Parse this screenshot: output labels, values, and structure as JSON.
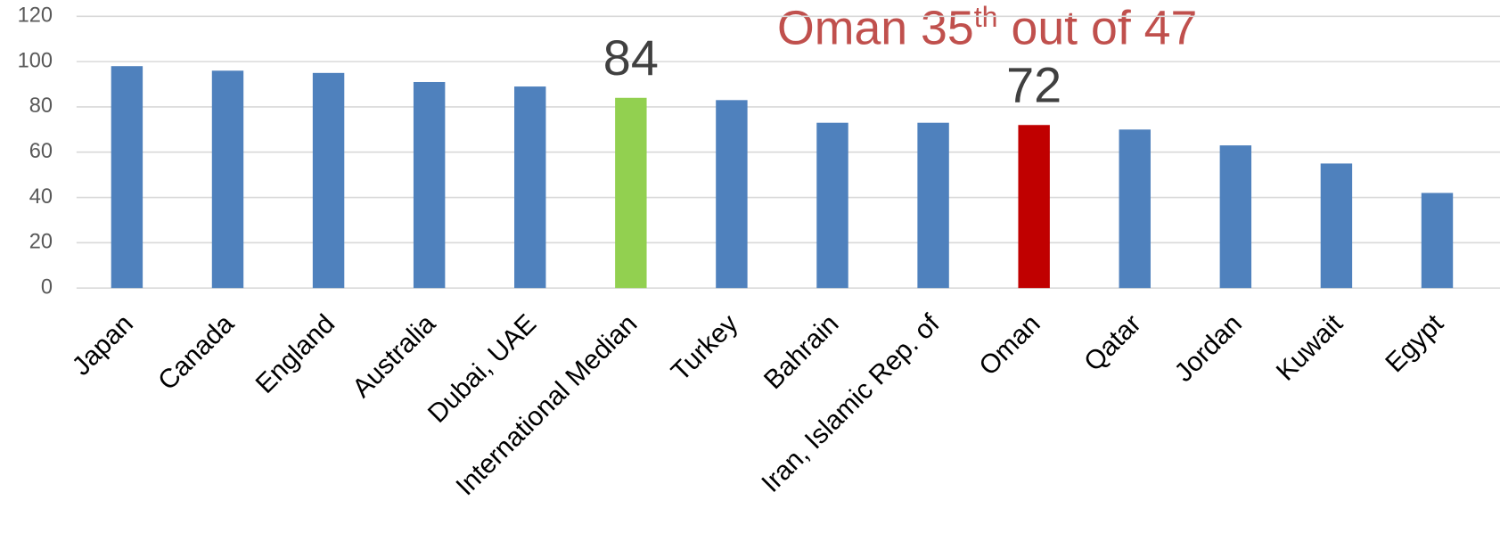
{
  "chart_data": {
    "type": "bar",
    "annotation": [
      "Oman 35",
      "th",
      " out of 47"
    ],
    "categories": [
      "Japan",
      "Canada",
      "England",
      "Australia",
      "Dubai, UAE",
      "International Median",
      "Turkey",
      "Bahrain",
      "Iran, Islamic Rep. of",
      "Oman",
      "Qatar",
      "Jordan",
      "Kuwait",
      "Egypt"
    ],
    "values": [
      98,
      96,
      95,
      91,
      89,
      84,
      83,
      73,
      73,
      72,
      70,
      63,
      55,
      42
    ],
    "colors": [
      "#4f81bd",
      "#4f81bd",
      "#4f81bd",
      "#4f81bd",
      "#4f81bd",
      "#92d050",
      "#4f81bd",
      "#4f81bd",
      "#4f81bd",
      "#c00000",
      "#4f81bd",
      "#4f81bd",
      "#4f81bd",
      "#4f81bd"
    ],
    "show_label": [
      false,
      false,
      false,
      false,
      false,
      true,
      false,
      false,
      false,
      true,
      false,
      false,
      false,
      false
    ],
    "ylim": [
      0,
      120
    ],
    "yticks": [
      0,
      20,
      40,
      60,
      80,
      100,
      120
    ],
    "grid": true
  }
}
